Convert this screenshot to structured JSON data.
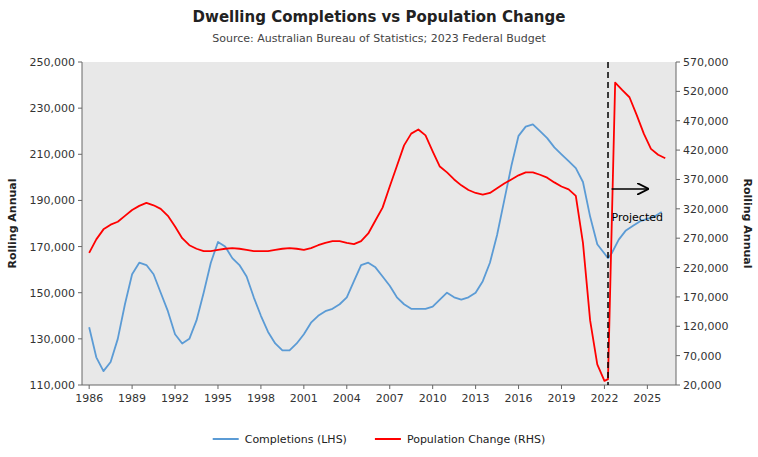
{
  "chart_data": {
    "type": "line",
    "title": "Dwelling Completions vs Population Change",
    "subtitle": "Source: Australian Bureau of Statistics; 2023 Federal Budget",
    "ylabel": "Rolling Annual",
    "y2label": "Rolling Annual",
    "background_color": "#E8E8E8",
    "grid": false,
    "legend": "bottom",
    "xlim": [
      1985.5,
      2027.0
    ],
    "xticks": [
      1986,
      1989,
      1992,
      1995,
      1998,
      2001,
      2004,
      2007,
      2010,
      2013,
      2016,
      2019,
      2022,
      2025
    ],
    "ylim": [
      110000,
      250000
    ],
    "yticks": [
      {
        "value": 110000,
        "label": "110,000"
      },
      {
        "value": 130000,
        "label": "130,000"
      },
      {
        "value": 150000,
        "label": "150,000"
      },
      {
        "value": 170000,
        "label": "170,000"
      },
      {
        "value": 190000,
        "label": "190,000"
      },
      {
        "value": 210000,
        "label": "210,000"
      },
      {
        "value": 230000,
        "label": "230,000"
      },
      {
        "value": 250000,
        "label": "250,000"
      }
    ],
    "y2lim": [
      20000,
      570000
    ],
    "y2ticks": [
      {
        "value": 20000,
        "label": "20,000"
      },
      {
        "value": 70000,
        "label": "70,000"
      },
      {
        "value": 120000,
        "label": "120,000"
      },
      {
        "value": 170000,
        "label": "170,000"
      },
      {
        "value": 220000,
        "label": "220,000"
      },
      {
        "value": 270000,
        "label": "270,000"
      },
      {
        "value": 320000,
        "label": "320,000"
      },
      {
        "value": 370000,
        "label": "370,000"
      },
      {
        "value": 420000,
        "label": "420,000"
      },
      {
        "value": 470000,
        "label": "470,000"
      },
      {
        "value": 520000,
        "label": "520,000"
      },
      {
        "value": 570000,
        "label": "570,000"
      }
    ],
    "reference_line": {
      "x": 2022.25,
      "line_style": "dashed"
    },
    "annotations": [
      {
        "text": "Projected",
        "x": 2022.5,
        "y": 186000,
        "arrow_x": [
          2022.5,
          2025.0
        ],
        "arrow_y": 195000
      }
    ],
    "series": [
      {
        "name": "Completions (LHS)",
        "color": "#5B9BD5",
        "axis": "y",
        "x": [
          1986.0,
          1986.5,
          1987.0,
          1987.5,
          1988.0,
          1988.5,
          1989.0,
          1989.5,
          1990.0,
          1990.5,
          1991.0,
          1991.5,
          1992.0,
          1992.5,
          1993.0,
          1993.5,
          1994.0,
          1994.5,
          1995.0,
          1995.5,
          1996.0,
          1996.5,
          1997.0,
          1997.5,
          1998.0,
          1998.5,
          1999.0,
          1999.5,
          2000.0,
          2000.5,
          2001.0,
          2001.5,
          2002.0,
          2002.5,
          2003.0,
          2003.5,
          2004.0,
          2004.5,
          2005.0,
          2005.5,
          2006.0,
          2006.5,
          2007.0,
          2007.5,
          2008.0,
          2008.5,
          2009.0,
          2009.5,
          2010.0,
          2010.5,
          2011.0,
          2011.5,
          2012.0,
          2012.5,
          2013.0,
          2013.5,
          2014.0,
          2014.5,
          2015.0,
          2015.5,
          2016.0,
          2016.5,
          2017.0,
          2017.5,
          2018.0,
          2018.5,
          2019.0,
          2019.5,
          2020.0,
          2020.5,
          2021.0,
          2021.5,
          2022.0,
          2022.25,
          2022.5,
          2023.0,
          2023.5,
          2024.0,
          2024.5,
          2025.0,
          2025.5,
          2026.0
        ],
        "values": [
          135000,
          122000,
          116000,
          120000,
          130000,
          145000,
          158000,
          163000,
          162000,
          158000,
          150000,
          142000,
          132000,
          128000,
          130000,
          138000,
          150000,
          163000,
          172000,
          170000,
          165000,
          162000,
          157000,
          148000,
          140000,
          133000,
          128000,
          125000,
          125000,
          128000,
          132000,
          137000,
          140000,
          142000,
          143000,
          145000,
          148000,
          155000,
          162000,
          163000,
          161000,
          157000,
          153000,
          148000,
          145000,
          143000,
          143000,
          143000,
          144000,
          147000,
          150000,
          148000,
          147000,
          148000,
          150000,
          155000,
          163000,
          175000,
          190000,
          205000,
          218000,
          222000,
          223000,
          220000,
          217000,
          213000,
          210000,
          207000,
          204000,
          198000,
          183000,
          171000,
          167000,
          165000,
          167000,
          173000,
          177000,
          179000,
          181000,
          182000,
          183000,
          185000
        ]
      },
      {
        "name": "Population Change (RHS)",
        "color": "#FF0000",
        "axis": "y2",
        "x": [
          1986.0,
          1986.5,
          1987.0,
          1987.5,
          1988.0,
          1988.5,
          1989.0,
          1989.5,
          1990.0,
          1990.5,
          1991.0,
          1991.5,
          1992.0,
          1992.5,
          1993.0,
          1993.5,
          1994.0,
          1994.5,
          1995.0,
          1995.5,
          1996.0,
          1996.5,
          1997.0,
          1997.5,
          1998.0,
          1998.5,
          1999.0,
          1999.5,
          2000.0,
          2000.5,
          2001.0,
          2001.5,
          2002.0,
          2002.5,
          2003.0,
          2003.5,
          2004.0,
          2004.5,
          2005.0,
          2005.5,
          2006.0,
          2006.5,
          2007.0,
          2007.5,
          2008.0,
          2008.5,
          2009.0,
          2009.5,
          2010.0,
          2010.5,
          2011.0,
          2011.5,
          2012.0,
          2012.5,
          2013.0,
          2013.5,
          2014.0,
          2014.5,
          2015.0,
          2015.5,
          2016.0,
          2016.5,
          2017.0,
          2017.5,
          2018.0,
          2018.5,
          2019.0,
          2019.5,
          2020.0,
          2020.5,
          2021.0,
          2021.5,
          2022.0,
          2022.25,
          2022.75,
          2023.25,
          2023.75,
          2024.25,
          2024.75,
          2025.25,
          2025.75,
          2026.25
        ],
        "values": [
          245000,
          268000,
          285000,
          293000,
          298000,
          308000,
          318000,
          325000,
          330000,
          326000,
          320000,
          308000,
          290000,
          270000,
          258000,
          252000,
          248000,
          248000,
          250000,
          252000,
          253000,
          252000,
          250000,
          248000,
          248000,
          248000,
          250000,
          252000,
          253000,
          252000,
          250000,
          253000,
          258000,
          262000,
          265000,
          265000,
          262000,
          260000,
          265000,
          278000,
          300000,
          322000,
          358000,
          393000,
          428000,
          448000,
          455000,
          445000,
          418000,
          392000,
          382000,
          370000,
          360000,
          352000,
          347000,
          344000,
          347000,
          355000,
          363000,
          370000,
          377000,
          382000,
          382000,
          378000,
          373000,
          365000,
          358000,
          353000,
          342000,
          262000,
          130000,
          55000,
          27000,
          30000,
          535000,
          522000,
          510000,
          480000,
          448000,
          422000,
          412000,
          406000
        ]
      }
    ]
  }
}
